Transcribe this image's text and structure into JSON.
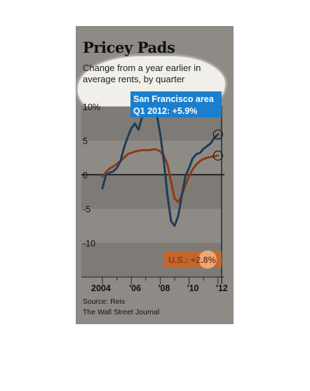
{
  "chart_data": {
    "type": "line",
    "title": "Pricey Pads",
    "subtitle": "Change from a year earlier in average rents, by quarter",
    "ylim": [
      -15,
      12
    ],
    "y_ticks": [
      10,
      5,
      0,
      -5,
      -10
    ],
    "y_tick_labels": [
      "10%",
      "5",
      "0",
      "-5",
      "-10"
    ],
    "x_range": [
      2004.0,
      2012.25
    ],
    "x_ticks": [
      2004,
      2006,
      2008,
      2010,
      2012
    ],
    "x_tick_labels": [
      "2004",
      "'06",
      "'08",
      "'10",
      "'12"
    ],
    "grid": false,
    "banded_background": true,
    "series": [
      {
        "name": "San Francisco area",
        "color": "#1d3d58",
        "callout": "Q1 2012:  +5.9%",
        "x": [
          2004.0,
          2004.25,
          2004.5,
          2004.75,
          2005.0,
          2005.25,
          2005.5,
          2005.75,
          2006.0,
          2006.25,
          2006.5,
          2006.75,
          2007.0,
          2007.25,
          2007.5,
          2007.75,
          2008.0,
          2008.25,
          2008.5,
          2008.75,
          2009.0,
          2009.25,
          2009.5,
          2009.75,
          2010.0,
          2010.25,
          2010.5,
          2010.75,
          2011.0,
          2011.25,
          2011.5,
          2011.75,
          2012.0
        ],
        "y": [
          -2,
          0,
          0.3,
          0.5,
          1,
          2,
          4,
          5.5,
          6.8,
          7.5,
          6.6,
          8.5,
          9.5,
          11,
          10.5,
          9,
          6,
          2,
          -3,
          -6.8,
          -7.5,
          -6,
          -3,
          -0.2,
          1,
          2.4,
          3,
          3.2,
          3.8,
          4.2,
          4.6,
          5.4,
          5.9
        ]
      },
      {
        "name": "U.S.",
        "color": "#8e3a14",
        "callout": "U.S.: +2.8%",
        "x": [
          2004.0,
          2004.25,
          2004.5,
          2004.75,
          2005.0,
          2005.25,
          2005.5,
          2005.75,
          2006.0,
          2006.25,
          2006.5,
          2006.75,
          2007.0,
          2007.25,
          2007.5,
          2007.75,
          2008.0,
          2008.25,
          2008.5,
          2008.75,
          2009.0,
          2009.25,
          2009.5,
          2009.75,
          2010.0,
          2010.25,
          2010.5,
          2010.75,
          2011.0,
          2011.25,
          2011.5,
          2011.75,
          2012.0
        ],
        "y": [
          -0.3,
          0.4,
          0.9,
          1.2,
          1.6,
          2.0,
          2.5,
          3.0,
          3.2,
          3.4,
          3.5,
          3.6,
          3.6,
          3.6,
          3.7,
          3.7,
          3.4,
          2.8,
          1.5,
          -1.0,
          -3.5,
          -4.0,
          -3.0,
          -1.5,
          -0.2,
          0.8,
          1.5,
          2.0,
          2.3,
          2.5,
          2.6,
          2.7,
          2.8
        ]
      }
    ],
    "source": "Source: Reis",
    "publisher": "The Wall Street Journal"
  }
}
